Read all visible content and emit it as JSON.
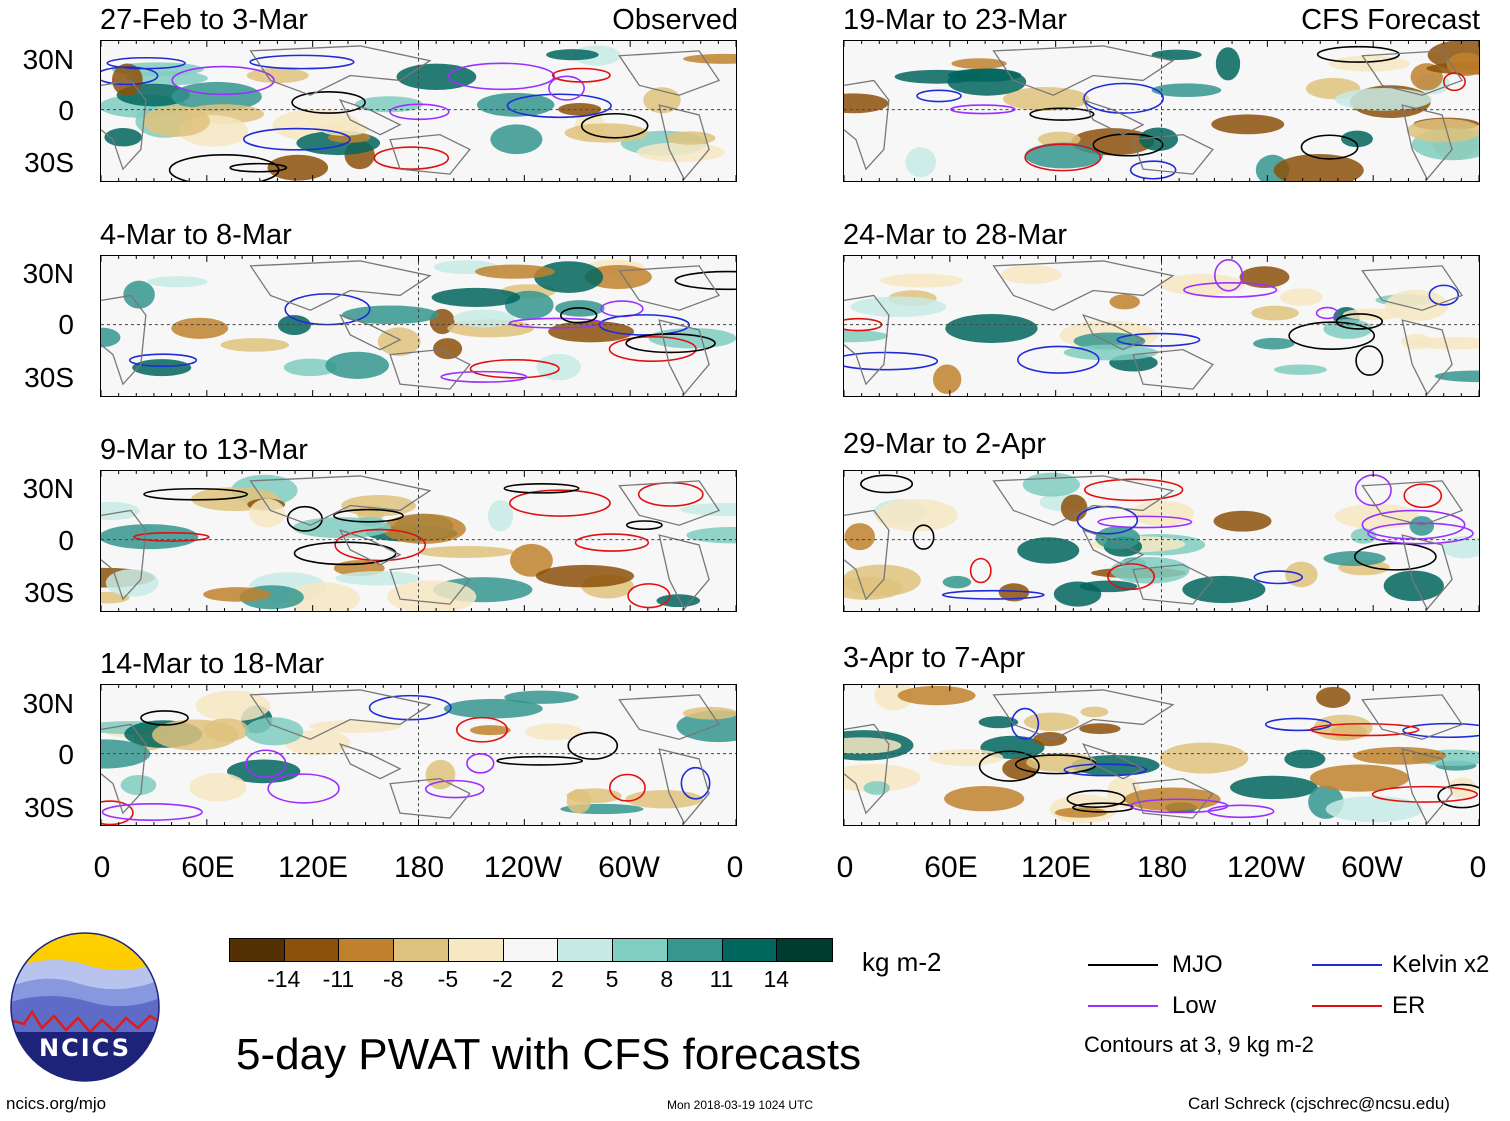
{
  "figure_title": "5-day PWAT with CFS forecasts",
  "left_column_tag": "Observed",
  "right_column_tag": "CFS Forecast",
  "panels_left": [
    {
      "title": "27-Feb to 3-Mar"
    },
    {
      "title": "4-Mar to 8-Mar"
    },
    {
      "title": "9-Mar to 13-Mar"
    },
    {
      "title": "14-Mar to 18-Mar"
    }
  ],
  "panels_right": [
    {
      "title": "19-Mar to 23-Mar"
    },
    {
      "title": "24-Mar to 28-Mar"
    },
    {
      "title": "29-Mar to 2-Apr"
    },
    {
      "title": "3-Apr to 7-Apr"
    }
  ],
  "lat_labels": [
    "30N",
    "0",
    "30S"
  ],
  "lon_labels": [
    "0",
    "60E",
    "120E",
    "180",
    "120W",
    "60W",
    "0"
  ],
  "colorbar": {
    "units": "kg m-2",
    "ticks": [
      "-14",
      "-11",
      "-8",
      "-5",
      "-2",
      "2",
      "5",
      "8",
      "11",
      "14"
    ],
    "colors": [
      "#543005",
      "#8c510a",
      "#bf812d",
      "#dfc27d",
      "#f6e8c3",
      "#f7f7f7",
      "#c7eae5",
      "#80cdc1",
      "#35978f",
      "#01665e",
      "#003c30"
    ]
  },
  "legend": {
    "items": [
      {
        "label": "MJO",
        "color": "#000000"
      },
      {
        "label": "Kelvin x2",
        "color": "#1f2bd6"
      },
      {
        "label": "Low",
        "color": "#9b30ff"
      },
      {
        "label": "ER",
        "color": "#e01010"
      }
    ],
    "contours_note": "Contours at 3, 9 kg m-2"
  },
  "logo": {
    "text": "NCICS"
  },
  "footer": {
    "url": "ncics.org/mjo",
    "timestamp": "Mon 2018-03-19 1024 UTC",
    "credit": "Carl Schreck (cjschrec@ncsu.edu)"
  }
}
